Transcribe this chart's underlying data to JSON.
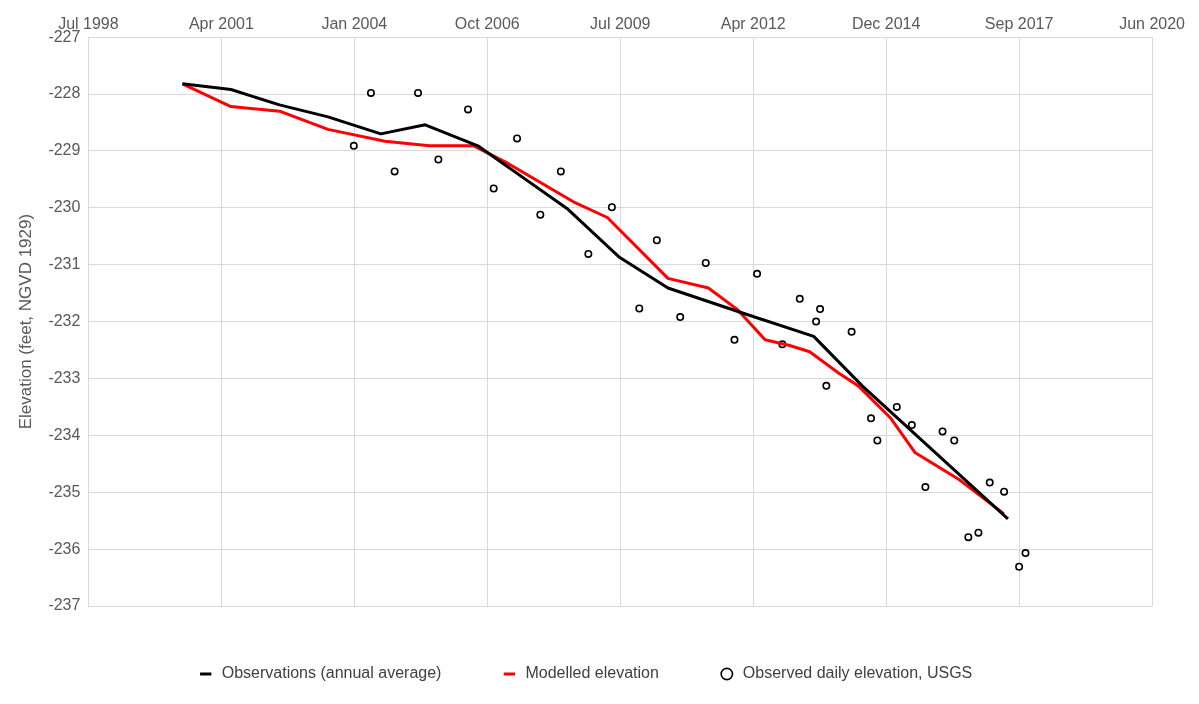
{
  "chart_data": {
    "type": "line",
    "ylabel": "Elevation (feet, NGVD 1929)",
    "xlim": [
      "1998-07-25",
      "2020-06-19"
    ],
    "xticks": [
      {
        "value": "1998-07-25",
        "label": "Jul 1998"
      },
      {
        "value": "2001-04-20",
        "label": "Apr 2001"
      },
      {
        "value": "2004-01-15",
        "label": "Jan 2004"
      },
      {
        "value": "2006-10-11",
        "label": "Oct 2006"
      },
      {
        "value": "2009-07-07",
        "label": "Jul 2009"
      },
      {
        "value": "2012-04-02",
        "label": "Apr 2012"
      },
      {
        "value": "2014-12-28",
        "label": "Dec 2014"
      },
      {
        "value": "2017-09-23",
        "label": "Sep 2017"
      },
      {
        "value": "2020-06-19",
        "label": "Jun 2020"
      }
    ],
    "ylim": [
      -237,
      -227
    ],
    "yticks": [
      -237,
      -236,
      -235,
      -234,
      -233,
      -232,
      -231,
      -230,
      -229,
      -228,
      -227
    ],
    "grid": true,
    "legend": "bottom",
    "series": [
      {
        "name": "Observations (annual average)",
        "color": "#000000",
        "marker": "none",
        "x": [
          "2000-07",
          "2001-07",
          "2002-07",
          "2003-07",
          "2004-08",
          "2005-07",
          "2006-08",
          "2008-06",
          "2009-07",
          "2010-07",
          "2012-01",
          "2013-07",
          "2014-07",
          "2017-07"
        ],
        "values": [
          -227.82,
          -227.92,
          -228.19,
          -228.4,
          -228.7,
          -228.54,
          -228.91,
          -230.01,
          -230.87,
          -231.41,
          -231.84,
          -232.26,
          -233.13,
          -235.47
        ]
      },
      {
        "name": "Modelled elevation",
        "color": "#ff0000",
        "marker": "none",
        "x": [
          "2000-07",
          "2001-07",
          "2002-07",
          "2003-07",
          "2004-09",
          "2005-08",
          "2006-07",
          "2007-03",
          "2008-08",
          "2009-04",
          "2010-07",
          "2011-05",
          "2011-12",
          "2012-07",
          "2013-01",
          "2013-06",
          "2014-01",
          "2014-06",
          "2015-02",
          "2015-08",
          "2016-07",
          "2017-06"
        ],
        "values": [
          -227.82,
          -228.22,
          -228.3,
          -228.62,
          -228.83,
          -228.91,
          -228.91,
          -229.2,
          -229.91,
          -230.17,
          -231.24,
          -231.41,
          -231.78,
          -232.32,
          -232.42,
          -232.53,
          -232.9,
          -233.13,
          -233.7,
          -234.3,
          -234.78,
          -235.38
        ]
      },
      {
        "name": "Observed daily elevation, USGS",
        "type": "scatter",
        "color": "#000000",
        "marker": "circle",
        "x": [
          "2004-01-11",
          "2004-05-19",
          "2004-11-13",
          "2005-05-08",
          "2005-10-08",
          "2006-05-19",
          "2006-11-28",
          "2007-05-23",
          "2007-11-14",
          "2008-04-16",
          "2008-11-09",
          "2009-05-05",
          "2009-11-27",
          "2010-04-08",
          "2010-10-01",
          "2011-04-11",
          "2011-11-13",
          "2012-05-01",
          "2012-11-07",
          "2013-03-18",
          "2013-07-19",
          "2013-08-18",
          "2013-10-04",
          "2014-04-12",
          "2014-09-05",
          "2014-10-23",
          "2015-03-18",
          "2015-07-09",
          "2015-10-19",
          "2016-02-25",
          "2016-05-23",
          "2016-09-06",
          "2016-11-21",
          "2017-02-14",
          "2017-06-02",
          "2017-09-23",
          "2017-11-10"
        ],
        "values": [
          -228.91,
          -227.98,
          -229.36,
          -227.98,
          -229.15,
          -228.27,
          -229.66,
          -228.78,
          -230.12,
          -229.36,
          -230.81,
          -229.99,
          -231.77,
          -230.57,
          -231.92,
          -230.97,
          -232.32,
          -231.16,
          -232.4,
          -231.6,
          -232.0,
          -231.78,
          -233.13,
          -232.18,
          -233.7,
          -234.09,
          -233.5,
          -233.82,
          -234.91,
          -233.93,
          -234.09,
          -235.79,
          -235.71,
          -234.83,
          -234.99,
          -236.31,
          -236.07
        ]
      }
    ]
  }
}
